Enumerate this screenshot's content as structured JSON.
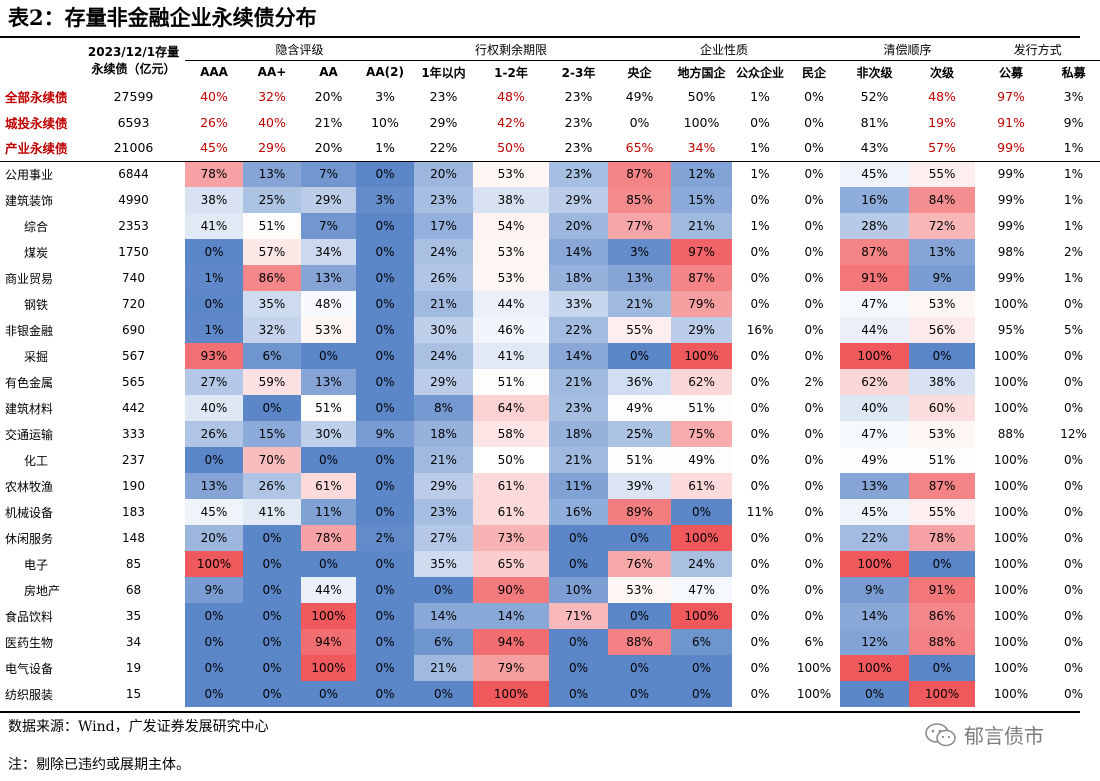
{
  "title": "表2：存量非金融企业永续债分布",
  "header": {
    "stock_line1": "2023/12/1存量",
    "stock_line2": "永续债（亿元）",
    "groups": [
      {
        "label": "隐含评级",
        "span": 4
      },
      {
        "label": "行权剩余期限",
        "span": 3
      },
      {
        "label": "企业性质",
        "span": 4
      },
      {
        "label": "清偿顺序",
        "span": 2
      },
      {
        "label": "发行方式",
        "span": 2
      }
    ],
    "columns": [
      "AAA",
      "AA+",
      "AA",
      "AA(2)",
      "1年以内",
      "1-2年",
      "2-3年",
      "央企",
      "地方国企",
      "公众企业",
      "民企",
      "非次级",
      "次级",
      "公募",
      "私募"
    ]
  },
  "rows": [
    {
      "name": "全部永续债",
      "total": true,
      "stock": "27599",
      "values": [
        "40%",
        "32%",
        "20%",
        "3%",
        "23%",
        "48%",
        "23%",
        "49%",
        "50%",
        "1%",
        "0%",
        "52%",
        "48%",
        "97%",
        "3%"
      ],
      "red": [
        0,
        1,
        5,
        12,
        13
      ]
    },
    {
      "name": "城投永续债",
      "total": true,
      "stock": "6593",
      "values": [
        "26%",
        "40%",
        "21%",
        "10%",
        "29%",
        "42%",
        "23%",
        "0%",
        "100%",
        "0%",
        "0%",
        "81%",
        "19%",
        "91%",
        "9%"
      ],
      "red": [
        0,
        1,
        5,
        12,
        13
      ]
    },
    {
      "name": "产业永续债",
      "total": true,
      "stock": "21006",
      "values": [
        "45%",
        "29%",
        "20%",
        "1%",
        "22%",
        "50%",
        "23%",
        "65%",
        "34%",
        "1%",
        "0%",
        "43%",
        "57%",
        "99%",
        "1%"
      ],
      "red": [
        0,
        1,
        5,
        7,
        8,
        12,
        13
      ]
    },
    {
      "name": "公用事业",
      "stock": "6844",
      "values": [
        "78%",
        "13%",
        "7%",
        "0%",
        "20%",
        "53%",
        "23%",
        "87%",
        "12%",
        "1%",
        "0%",
        "45%",
        "55%",
        "99%",
        "1%"
      ]
    },
    {
      "name": "建筑装饰",
      "stock": "4990",
      "values": [
        "38%",
        "25%",
        "29%",
        "3%",
        "23%",
        "38%",
        "29%",
        "85%",
        "15%",
        "0%",
        "0%",
        "16%",
        "84%",
        "99%",
        "1%"
      ]
    },
    {
      "name": "综合",
      "stock": "2353",
      "indent": true,
      "values": [
        "41%",
        "51%",
        "7%",
        "0%",
        "17%",
        "54%",
        "20%",
        "77%",
        "21%",
        "1%",
        "0%",
        "28%",
        "72%",
        "99%",
        "1%"
      ]
    },
    {
      "name": "煤炭",
      "stock": "1750",
      "indent": true,
      "values": [
        "0%",
        "57%",
        "34%",
        "0%",
        "24%",
        "53%",
        "14%",
        "3%",
        "97%",
        "0%",
        "0%",
        "87%",
        "13%",
        "98%",
        "2%"
      ]
    },
    {
      "name": "商业贸易",
      "stock": "740",
      "values": [
        "1%",
        "86%",
        "13%",
        "0%",
        "26%",
        "53%",
        "18%",
        "13%",
        "87%",
        "0%",
        "0%",
        "91%",
        "9%",
        "99%",
        "1%"
      ]
    },
    {
      "name": "钢铁",
      "stock": "720",
      "indent": true,
      "values": [
        "0%",
        "35%",
        "48%",
        "0%",
        "21%",
        "44%",
        "33%",
        "21%",
        "79%",
        "0%",
        "0%",
        "47%",
        "53%",
        "100%",
        "0%"
      ]
    },
    {
      "name": "非银金融",
      "stock": "690",
      "values": [
        "1%",
        "32%",
        "53%",
        "0%",
        "30%",
        "46%",
        "22%",
        "55%",
        "29%",
        "16%",
        "0%",
        "44%",
        "56%",
        "95%",
        "5%"
      ]
    },
    {
      "name": "采掘",
      "stock": "567",
      "indent": true,
      "values": [
        "93%",
        "6%",
        "0%",
        "0%",
        "24%",
        "41%",
        "14%",
        "0%",
        "100%",
        "0%",
        "0%",
        "100%",
        "0%",
        "100%",
        "0%"
      ]
    },
    {
      "name": "有色金属",
      "stock": "565",
      "values": [
        "27%",
        "59%",
        "13%",
        "0%",
        "29%",
        "51%",
        "21%",
        "36%",
        "62%",
        "0%",
        "2%",
        "62%",
        "38%",
        "100%",
        "0%"
      ]
    },
    {
      "name": "建筑材料",
      "stock": "442",
      "values": [
        "40%",
        "0%",
        "51%",
        "0%",
        "8%",
        "64%",
        "23%",
        "49%",
        "51%",
        "0%",
        "0%",
        "40%",
        "60%",
        "100%",
        "0%"
      ]
    },
    {
      "name": "交通运输",
      "stock": "333",
      "values": [
        "26%",
        "15%",
        "30%",
        "9%",
        "18%",
        "58%",
        "18%",
        "25%",
        "75%",
        "0%",
        "0%",
        "47%",
        "53%",
        "88%",
        "12%"
      ]
    },
    {
      "name": "化工",
      "stock": "237",
      "indent": true,
      "values": [
        "0%",
        "70%",
        "0%",
        "0%",
        "21%",
        "50%",
        "21%",
        "51%",
        "49%",
        "0%",
        "0%",
        "49%",
        "51%",
        "100%",
        "0%"
      ]
    },
    {
      "name": "农林牧渔",
      "stock": "190",
      "values": [
        "13%",
        "26%",
        "61%",
        "0%",
        "29%",
        "61%",
        "11%",
        "39%",
        "61%",
        "0%",
        "0%",
        "13%",
        "87%",
        "100%",
        "0%"
      ]
    },
    {
      "name": "机械设备",
      "stock": "183",
      "values": [
        "45%",
        "41%",
        "11%",
        "0%",
        "23%",
        "61%",
        "16%",
        "89%",
        "0%",
        "11%",
        "0%",
        "45%",
        "55%",
        "100%",
        "0%"
      ]
    },
    {
      "name": "休闲服务",
      "stock": "148",
      "values": [
        "20%",
        "0%",
        "78%",
        "2%",
        "27%",
        "73%",
        "0%",
        "0%",
        "100%",
        "0%",
        "0%",
        "22%",
        "78%",
        "100%",
        "0%"
      ]
    },
    {
      "name": "电子",
      "stock": "85",
      "indent": true,
      "values": [
        "100%",
        "0%",
        "0%",
        "0%",
        "35%",
        "65%",
        "0%",
        "76%",
        "24%",
        "0%",
        "0%",
        "100%",
        "0%",
        "100%",
        "0%"
      ]
    },
    {
      "name": "房地产",
      "stock": "68",
      "indent": true,
      "values": [
        "9%",
        "0%",
        "44%",
        "0%",
        "0%",
        "90%",
        "10%",
        "53%",
        "47%",
        "0%",
        "0%",
        "9%",
        "91%",
        "100%",
        "0%"
      ]
    },
    {
      "name": "食品饮料",
      "stock": "35",
      "values": [
        "0%",
        "0%",
        "100%",
        "0%",
        "14%",
        "14%",
        "71%",
        "0%",
        "100%",
        "0%",
        "0%",
        "14%",
        "86%",
        "100%",
        "0%"
      ]
    },
    {
      "name": "医药生物",
      "stock": "34",
      "values": [
        "0%",
        "0%",
        "94%",
        "0%",
        "6%",
        "94%",
        "0%",
        "88%",
        "6%",
        "0%",
        "6%",
        "12%",
        "88%",
        "100%",
        "0%"
      ]
    },
    {
      "name": "电气设备",
      "stock": "19",
      "values": [
        "0%",
        "0%",
        "100%",
        "0%",
        "21%",
        "79%",
        "0%",
        "0%",
        "0%",
        "0%",
        "100%",
        "100%",
        "0%",
        "100%",
        "0%"
      ]
    },
    {
      "name": "纺织服装",
      "stock": "15",
      "values": [
        "0%",
        "0%",
        "0%",
        "0%",
        "0%",
        "100%",
        "0%",
        "0%",
        "0%",
        "0%",
        "100%",
        "0%",
        "100%",
        "100%",
        "0%"
      ]
    }
  ],
  "heatmap_columns": [
    0,
    1,
    2,
    3,
    4,
    5,
    6,
    7,
    8,
    11,
    12
  ],
  "colors": {
    "high": "#f0595c",
    "mid": "#ffffff",
    "low": "#5b86c8",
    "total_text": "#c00000"
  },
  "source": "数据来源：Wind，广发证券发展研究中心",
  "note": "注：剔除已违约或展期主体。",
  "watermark": "郁言债市",
  "watermark_icon": "wechat-icon"
}
